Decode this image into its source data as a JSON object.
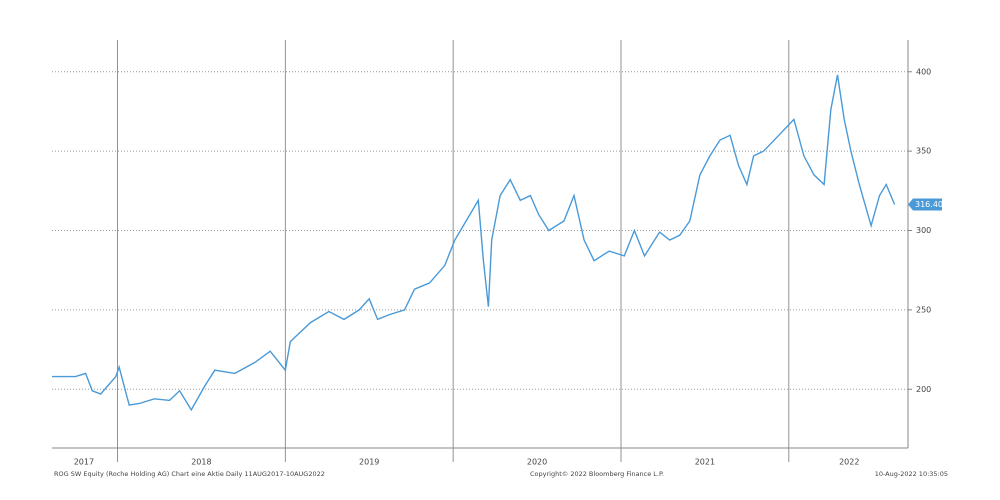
{
  "chart_data": {
    "type": "line",
    "x": [
      2017.61,
      2017.75,
      2017.81,
      2017.85,
      2017.9,
      2017.99,
      2018.01,
      2018.07,
      2018.13,
      2018.22,
      2018.31,
      2018.37,
      2018.44,
      2018.52,
      2018.58,
      2018.7,
      2018.82,
      2018.91,
      2019.0,
      2019.03,
      2019.15,
      2019.26,
      2019.35,
      2019.44,
      2019.5,
      2019.55,
      2019.62,
      2019.71,
      2019.77,
      2019.86,
      2019.95,
      2020.01,
      2020.1,
      2020.15,
      2020.18,
      2020.21,
      2020.23,
      2020.28,
      2020.34,
      2020.4,
      2020.46,
      2020.51,
      2020.57,
      2020.66,
      2020.72,
      2020.78,
      2020.84,
      2020.93,
      2021.02,
      2021.08,
      2021.14,
      2021.23,
      2021.29,
      2021.35,
      2021.41,
      2021.47,
      2021.53,
      2021.59,
      2021.65,
      2021.7,
      2021.75,
      2021.79,
      2021.85,
      2021.94,
      2022.03,
      2022.09,
      2022.15,
      2022.21,
      2022.25,
      2022.29,
      2022.33,
      2022.37,
      2022.42,
      2022.49,
      2022.54,
      2022.58,
      2022.63
    ],
    "series": [
      {
        "name": "ROG SW Equity",
        "color": "#4a9ad8",
        "values": [
          208,
          208,
          210,
          199,
          197,
          208,
          214,
          190,
          191,
          194,
          193,
          199,
          187,
          202,
          212,
          210,
          217,
          224,
          212,
          230,
          242,
          249,
          244,
          250,
          257,
          244,
          247,
          250,
          263,
          267,
          278,
          294,
          310,
          319,
          281,
          252,
          294,
          322,
          332,
          319,
          322,
          310,
          300,
          306,
          322,
          294,
          281,
          287,
          284,
          300,
          284,
          299,
          294,
          297,
          306,
          335,
          347,
          357,
          360,
          341,
          329,
          347,
          350,
          360,
          370,
          347,
          335,
          329,
          376,
          398,
          370,
          350,
          329,
          303,
          322,
          329,
          316.4
        ]
      }
    ],
    "xlim": [
      2017.61,
      2022.71
    ],
    "xticks": [
      {
        "value": 2017.8,
        "label": "2017"
      },
      {
        "value": 2018.5,
        "label": "2018"
      },
      {
        "value": 2019.5,
        "label": "2019"
      },
      {
        "value": 2020.5,
        "label": "2020"
      },
      {
        "value": 2021.5,
        "label": "2021"
      },
      {
        "value": 2022.36,
        "label": "2022"
      }
    ],
    "xgrid": [
      2018,
      2019,
      2020,
      2021,
      2022
    ],
    "ylim": [
      163,
      420
    ],
    "yticks": [
      200,
      250,
      300,
      350,
      400
    ],
    "grid": true,
    "last_value": {
      "value": 316.4,
      "label": "316.40"
    },
    "footer": [
      "ROG SW Equity (Roche Holding AG) Chart eine Aktie  Daily 11AUG2017-10AUG2022",
      "Copyright© 2022 Bloomberg Finance L.P.",
      "10-Aug-2022 10:35:05"
    ]
  }
}
